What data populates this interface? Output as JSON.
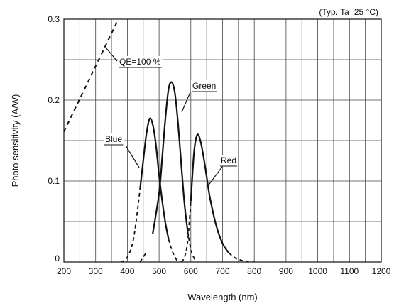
{
  "chart_data": {
    "type": "line",
    "note": "(Typ. Ta=25 °C)",
    "xlabel": "Wavelength (nm)",
    "ylabel": "Photo sensitivity (A/W)",
    "xlim": [
      200,
      1200
    ],
    "ylim": [
      0,
      0.3
    ],
    "x_ticks": [
      "200",
      "300",
      "400",
      "500",
      "600",
      "700",
      "800",
      "900",
      "1000",
      "1100",
      "1200"
    ],
    "y_ticks": [
      "0",
      "0.1",
      "0.2",
      "0.3"
    ],
    "grid": true,
    "series": [
      {
        "name": "QE=100 %",
        "style": "dashed",
        "x": [
          200,
          300,
          400,
          430
        ],
        "y": [
          0.161,
          0.242,
          0.323,
          0.347
        ]
      },
      {
        "name": "Blue",
        "style": "solid",
        "x": [
          380,
          400,
          420,
          440,
          450,
          460,
          470,
          480,
          490,
          500,
          510,
          520,
          530,
          540,
          550,
          560
        ],
        "y": [
          0.0,
          0.006,
          0.03,
          0.09,
          0.125,
          0.158,
          0.177,
          0.17,
          0.145,
          0.107,
          0.075,
          0.048,
          0.028,
          0.015,
          0.006,
          0.0
        ],
        "dashed_below_x": 440,
        "dashed_above_x": 530
      },
      {
        "name": "Green",
        "style": "solid",
        "x": [
          440,
          460,
          480,
          500,
          510,
          520,
          530,
          540,
          550,
          560,
          570,
          580,
          590,
          600,
          610,
          620
        ],
        "y": [
          0.0,
          0.012,
          0.035,
          0.085,
          0.13,
          0.178,
          0.214,
          0.222,
          0.208,
          0.17,
          0.12,
          0.072,
          0.038,
          0.016,
          0.005,
          0.0
        ],
        "dashed_below_x": 470,
        "dashed_above_x": 590
      },
      {
        "name": "Red",
        "style": "solid",
        "x": [
          570,
          580,
          590,
          600,
          610,
          620,
          630,
          640,
          650,
          660,
          680,
          700,
          720,
          740,
          760,
          780,
          800
        ],
        "y": [
          0.0,
          0.006,
          0.025,
          0.075,
          0.135,
          0.157,
          0.15,
          0.13,
          0.105,
          0.08,
          0.045,
          0.023,
          0.011,
          0.005,
          0.002,
          0.0,
          0.0
        ],
        "dashed_below_x": 600,
        "dashed_above_x": 720
      }
    ],
    "annotations": [
      {
        "text": "QE=100 %",
        "series": "QE=100 %"
      },
      {
        "text": "Green",
        "series": "Green"
      },
      {
        "text": "Blue",
        "series": "Blue"
      },
      {
        "text": "Red",
        "series": "Red"
      }
    ]
  },
  "colors": {
    "line": "#111111",
    "grid": "#444444",
    "background": "#ffffff"
  }
}
